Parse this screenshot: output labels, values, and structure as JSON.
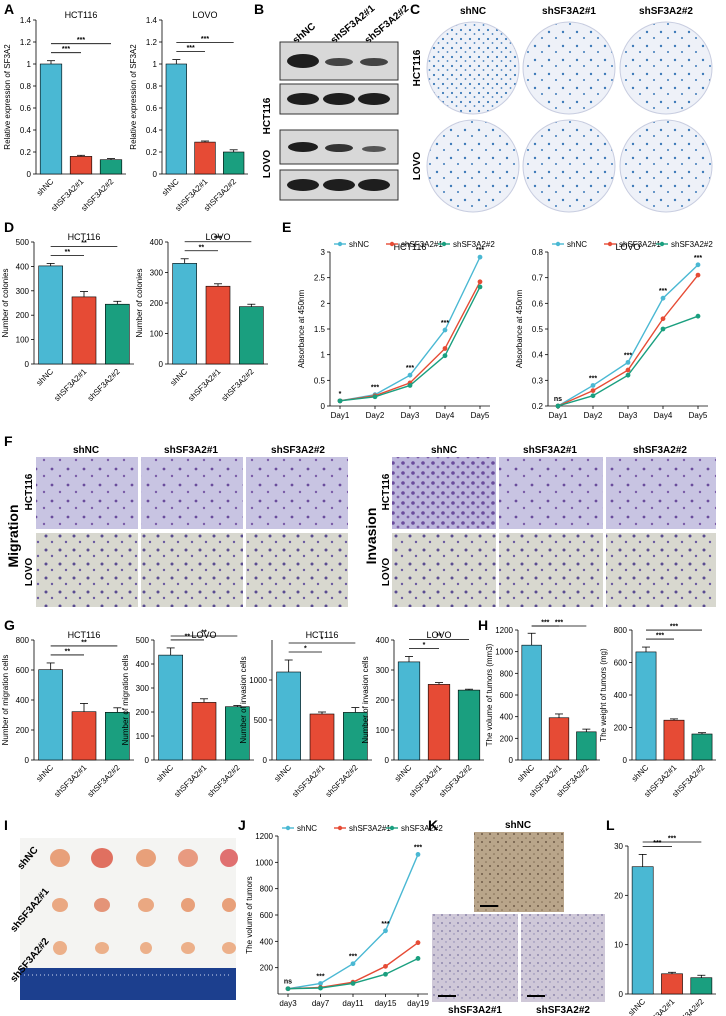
{
  "colors": {
    "shNC": "#4ab8d3",
    "sh1": "#e64b35",
    "sh2": "#1a9f7f",
    "wb_bg": "#d8d8d8",
    "band": "#202020",
    "dish": "#ecf0f8",
    "colony": "#3d7ab8",
    "transwell": "#b8b3db",
    "cell": "#6a4c9c",
    "tumor": "#e8a07a",
    "ihc": "#c4b39a",
    "ruler": "#1c3f8e"
  },
  "icons": {
    "petri_dish": "petri-dish-icon",
    "tumor": "tumor-photo-icon",
    "ruler": "ruler-icon",
    "western_band": "western-blot-band-icon"
  },
  "panels": {
    "A": {
      "label": "A"
    },
    "B": {
      "label": "B",
      "lanes": [
        "shNC",
        "shSF3A2#1",
        "shSF3A2#2"
      ],
      "rows": [
        "HCT116",
        "LOVO"
      ]
    },
    "C": {
      "label": "C",
      "cols": [
        "shNC",
        "shSF3A2#1",
        "shSF3A2#2"
      ],
      "rows": [
        "HCT116",
        "LOVO"
      ]
    },
    "D": {
      "label": "D"
    },
    "E": {
      "label": "E"
    },
    "F": {
      "label": "F",
      "cols": [
        "shNC",
        "shSF3A2#1",
        "shSF3A2#2"
      ],
      "rows": [
        "HCT116",
        "LOVO"
      ],
      "left": "Migration",
      "right": "Invasion"
    },
    "G": {
      "label": "G"
    },
    "H": {
      "label": "H"
    },
    "I": {
      "label": "I",
      "rows": [
        "shNC",
        "shSF3A2#1",
        "shSF3A2#2"
      ]
    },
    "J": {
      "label": "J"
    },
    "K": {
      "label": "K",
      "top": "shNC",
      "bottomLeft": "shSF3A2#1",
      "bottomRight": "shSF3A2#2"
    },
    "L": {
      "label": "L"
    }
  },
  "chart_data": [
    {
      "id": "A1",
      "type": "bar",
      "title": "HCT116",
      "ylabel": "Relative expression of SF3A2",
      "categories": [
        "shNC",
        "shSF3A2#1",
        "shSF3A2#2"
      ],
      "values": [
        1.0,
        0.16,
        0.13
      ],
      "errors": [
        0.03,
        0.01,
        0.01
      ],
      "ylim": [
        0,
        1.4
      ],
      "ticks": [
        0.0,
        0.2,
        0.4,
        0.6,
        0.8,
        1.0,
        1.2,
        1.4
      ],
      "sig": [
        {
          "a": 0,
          "b": 1,
          "t": "***"
        },
        {
          "a": 0,
          "b": 2,
          "t": "***"
        }
      ]
    },
    {
      "id": "A2",
      "type": "bar",
      "title": "LOVO",
      "ylabel": "Relative expression of SF3A2",
      "categories": [
        "shNC",
        "shSF3A2#1",
        "shSF3A2#2"
      ],
      "values": [
        1.0,
        0.29,
        0.2
      ],
      "errors": [
        0.04,
        0.01,
        0.02
      ],
      "ylim": [
        0,
        1.4
      ],
      "ticks": [
        0.0,
        0.2,
        0.4,
        0.6,
        0.8,
        1.0,
        1.2,
        1.4
      ],
      "sig": [
        {
          "a": 0,
          "b": 1,
          "t": "***"
        },
        {
          "a": 0,
          "b": 2,
          "t": "***"
        }
      ]
    },
    {
      "id": "D1",
      "type": "bar",
      "title": "HCT116",
      "ylabel": "Number of colonies",
      "categories": [
        "shNC",
        "shSF3A2#1",
        "shSF3A2#2"
      ],
      "values": [
        402,
        275,
        245
      ],
      "errors": [
        10,
        22,
        12
      ],
      "ylim": [
        0,
        500
      ],
      "ticks": [
        0,
        100,
        200,
        300,
        400,
        500
      ],
      "sig": [
        {
          "a": 0,
          "b": 1,
          "t": "**"
        },
        {
          "a": 0,
          "b": 2,
          "t": "**"
        }
      ]
    },
    {
      "id": "D2",
      "type": "bar",
      "title": "LOVO",
      "ylabel": "Number of colonies",
      "categories": [
        "shNC",
        "shSF3A2#1",
        "shSF3A2#2"
      ],
      "values": [
        330,
        255,
        188
      ],
      "errors": [
        15,
        8,
        8
      ],
      "ylim": [
        0,
        400
      ],
      "ticks": [
        0,
        100,
        200,
        300,
        400
      ],
      "sig": [
        {
          "a": 0,
          "b": 1,
          "t": "**"
        },
        {
          "a": 0,
          "b": 2,
          "t": "***"
        }
      ]
    },
    {
      "id": "E1",
      "type": "line",
      "title": "HCT116",
      "ylabel": "Absorbance at 450nm",
      "x": [
        "Day1",
        "Day2",
        "Day3",
        "Day4",
        "Day5"
      ],
      "series": [
        {
          "name": "shNC",
          "values": [
            0.1,
            0.22,
            0.6,
            1.48,
            2.9
          ]
        },
        {
          "name": "shSF3A2#1",
          "values": [
            0.1,
            0.2,
            0.45,
            1.12,
            2.42
          ]
        },
        {
          "name": "shSF3A2#2",
          "values": [
            0.1,
            0.18,
            0.4,
            0.98,
            2.32
          ]
        }
      ],
      "ylim": [
        0,
        3.0
      ],
      "ticks": [
        0.0,
        0.5,
        1.0,
        1.5,
        2.0,
        2.5,
        3.0
      ],
      "labels": [
        "*",
        "***",
        "***",
        "***",
        "***"
      ]
    },
    {
      "id": "E2",
      "type": "line",
      "title": "LOVO",
      "ylabel": "Absorbance at 450nm",
      "x": [
        "Day1",
        "Day2",
        "Day3",
        "Day4",
        "Day5"
      ],
      "series": [
        {
          "name": "shNC",
          "values": [
            0.2,
            0.28,
            0.37,
            0.62,
            0.75
          ]
        },
        {
          "name": "shSF3A2#1",
          "values": [
            0.2,
            0.26,
            0.34,
            0.54,
            0.71
          ]
        },
        {
          "name": "shSF3A2#2",
          "values": [
            0.2,
            0.24,
            0.32,
            0.5,
            0.55
          ]
        }
      ],
      "ylim": [
        0.2,
        0.8
      ],
      "ticks": [
        0.2,
        0.3,
        0.4,
        0.5,
        0.6,
        0.7,
        0.8
      ],
      "labels": [
        "ns",
        "***",
        "***",
        "***",
        "***"
      ]
    },
    {
      "id": "G1",
      "type": "bar",
      "title": "HCT116",
      "ylabel": "Number of migration cells",
      "categories": [
        "shNC",
        "shSF3A2#1",
        "shSF3A2#2"
      ],
      "values": [
        602,
        322,
        318
      ],
      "errors": [
        45,
        55,
        30
      ],
      "ylim": [
        0,
        800
      ],
      "ticks": [
        0,
        200,
        400,
        600,
        800
      ],
      "sig": [
        {
          "a": 0,
          "b": 1,
          "t": "**"
        },
        {
          "a": 0,
          "b": 2,
          "t": "**"
        }
      ]
    },
    {
      "id": "G2",
      "type": "bar",
      "title": "LOVO",
      "ylabel": "Number of migration cells",
      "categories": [
        "shNC",
        "shSF3A2#1",
        "shSF3A2#2"
      ],
      "values": [
        437,
        240,
        222
      ],
      "errors": [
        30,
        15,
        5
      ],
      "ylim": [
        0,
        500
      ],
      "ticks": [
        0,
        100,
        200,
        300,
        400,
        500
      ],
      "sig": [
        {
          "a": 0,
          "b": 1,
          "t": "**"
        },
        {
          "a": 0,
          "b": 2,
          "t": "**"
        }
      ]
    },
    {
      "id": "G3",
      "type": "bar",
      "title": "HCT116",
      "ylabel": "Number of invasion cells",
      "categories": [
        "shNC",
        "shSF3A2#1",
        "shSF3A2#2"
      ],
      "values": [
        1100,
        575,
        595
      ],
      "errors": [
        150,
        25,
        60
      ],
      "ylim": [
        0,
        1500
      ],
      "ticks": [
        0,
        500,
        1000
      ],
      "sig": [
        {
          "a": 0,
          "b": 1,
          "t": "*"
        },
        {
          "a": 0,
          "b": 2,
          "t": "*"
        }
      ]
    },
    {
      "id": "G4",
      "type": "bar",
      "title": "LOVO",
      "ylabel": "Number of invasion cells",
      "categories": [
        "shNC",
        "shSF3A2#1",
        "shSF3A2#2"
      ],
      "values": [
        327,
        252,
        233
      ],
      "errors": [
        18,
        6,
        3
      ],
      "ylim": [
        0,
        400
      ],
      "ticks": [
        0,
        100,
        200,
        300,
        400
      ],
      "sig": [
        {
          "a": 0,
          "b": 1,
          "t": "*"
        },
        {
          "a": 0,
          "b": 2,
          "t": "**"
        }
      ]
    },
    {
      "id": "H1",
      "type": "bar",
      "title": "",
      "ylabel": "The volume of tumors (mm3)",
      "categories": [
        "shNC",
        "shSF3A2#1",
        "shSF3A2#2"
      ],
      "values": [
        1060,
        390,
        260
      ],
      "errors": [
        110,
        35,
        25
      ],
      "ylim": [
        0,
        1200
      ],
      "ticks": [
        0,
        200,
        400,
        600,
        800,
        1000,
        1200
      ],
      "sig": [
        {
          "a": 0,
          "b": 1,
          "t": "***"
        },
        {
          "a": 0,
          "b": 2,
          "t": "***"
        }
      ]
    },
    {
      "id": "H2",
      "type": "bar",
      "title": "",
      "ylabel": "The weight of tumors (mg)",
      "categories": [
        "shNC",
        "shSF3A2#1",
        "shSF3A2#2"
      ],
      "values": [
        665,
        245,
        160
      ],
      "errors": [
        30,
        8,
        8
      ],
      "ylim": [
        0,
        800
      ],
      "ticks": [
        0,
        200,
        400,
        600,
        800
      ],
      "sig": [
        {
          "a": 0,
          "b": 1,
          "t": "***"
        },
        {
          "a": 0,
          "b": 2,
          "t": "***"
        }
      ]
    },
    {
      "id": "J",
      "type": "line",
      "title": "",
      "ylabel": "The volume of tumors",
      "x": [
        "day3",
        "day7",
        "day11",
        "day15",
        "day19"
      ],
      "series": [
        {
          "name": "shNC",
          "values": [
            40,
            80,
            230,
            480,
            1060
          ]
        },
        {
          "name": "shSF3A2#1",
          "values": [
            40,
            50,
            90,
            210,
            390
          ]
        },
        {
          "name": "shSF3A2#2",
          "values": [
            40,
            45,
            80,
            150,
            270
          ]
        }
      ],
      "ylim": [
        0,
        1200
      ],
      "ticks": [
        200,
        400,
        600,
        800,
        1000,
        1200
      ],
      "labels": [
        "ns",
        "***",
        "***",
        "***",
        "***"
      ]
    },
    {
      "id": "L",
      "type": "bar",
      "title": "",
      "ylabel": "",
      "categories": [
        "shNC",
        "shSF3A2#1",
        "shSF3A2#2"
      ],
      "values": [
        25.8,
        4.1,
        3.3
      ],
      "errors": [
        2.5,
        0.3,
        0.5
      ],
      "ylim": [
        0,
        30
      ],
      "ticks": [
        0,
        10,
        20,
        30
      ],
      "sig": [
        {
          "a": 0,
          "b": 1,
          "t": "***"
        },
        {
          "a": 0,
          "b": 2,
          "t": "***"
        }
      ]
    }
  ]
}
